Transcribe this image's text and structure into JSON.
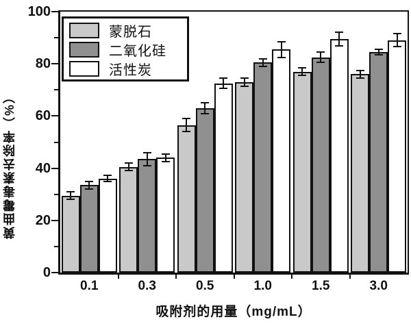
{
  "chart_data": {
    "type": "bar",
    "title": "",
    "xlabel": "吸附剂的用量（mg/mL）",
    "ylabel": "黄曲霉毒素去除率（%）",
    "categories": [
      "0.1",
      "0.3",
      "0.5",
      "1.0",
      "1.5",
      "3.0"
    ],
    "series": [
      {
        "name": "蒙脱石",
        "color": "#c9c9c9",
        "values": [
          29.5,
          40.5,
          56.5,
          73.0,
          77.0,
          76.0
        ],
        "errors": [
          1.5,
          1.5,
          2.5,
          1.5,
          1.5,
          1.5
        ]
      },
      {
        "name": "二氧化硅",
        "color": "#909090",
        "values": [
          33.5,
          43.5,
          63.0,
          80.5,
          82.5,
          84.5
        ],
        "errors": [
          1.5,
          2.5,
          2.0,
          1.5,
          2.0,
          1.0
        ]
      },
      {
        "name": "活性炭",
        "color": "#ffffff",
        "values": [
          36.0,
          44.0,
          72.5,
          85.5,
          89.5,
          89.0
        ],
        "errors": [
          1.2,
          1.5,
          2.0,
          3.0,
          2.5,
          2.5
        ]
      }
    ],
    "ylim": [
      0,
      100
    ],
    "yticks_major": [
      0,
      20,
      40,
      60,
      80,
      100
    ],
    "yticks_minor": [
      10,
      30,
      50,
      70,
      90
    ],
    "error_bar_color": "#111111",
    "axis_color": "#111111",
    "legend_position": "top-left",
    "grid": false
  }
}
